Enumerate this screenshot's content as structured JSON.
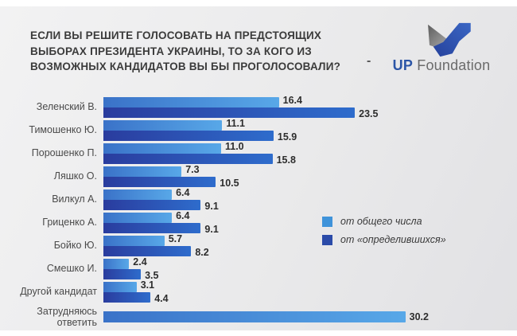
{
  "title": "ЕСЛИ ВЫ РЕШИТЕ ГОЛОСОВАТЬ НА ПРЕДСТОЯЩИХ ВЫБОРАХ ПРЕЗИДЕНТА УКРАИНЫ, ТО ЗА КОГО ИЗ ВОЗМОЖНЫХ КАНДИДАТОВ ВЫ БЫ ПРОГОЛОСОВАЛИ?",
  "brand": {
    "dash": "-",
    "logo_up": "UP",
    "logo_foundation": "Foundation",
    "logo_blue": "#2b55a7",
    "logo_gray": "#6b6b6b"
  },
  "chart_data": {
    "type": "bar",
    "orientation": "horizontal",
    "title": "ЕСЛИ ВЫ РЕШИТЕ ГОЛОСОВАТЬ НА ПРЕДСТОЯЩИХ ВЫБОРАХ ПРЕЗИДЕНТА УКРАИНЫ, ТО ЗА КОГО ИЗ ВОЗМОЖНЫХ КАНДИДАТОВ ВЫ БЫ ПРОГОЛОСОВАЛИ?",
    "categories": [
      "Зеленский В.",
      "Тимошенко Ю.",
      "Порошенко П.",
      "Ляшко О.",
      "Вилкул А.",
      "Гриценко А.",
      "Бойко Ю.",
      "Смешко И.",
      "Другой кандидат",
      "Затрудняюсь ответить"
    ],
    "series": [
      {
        "name": "от общего числа",
        "values": [
          16.4,
          11.1,
          11.0,
          7.3,
          6.4,
          6.4,
          5.7,
          2.4,
          3.1,
          30.2
        ],
        "display": [
          "16.4",
          "11.1",
          "11.0",
          "7.3",
          "6.4",
          "6.4",
          "5.7",
          "2.4",
          "3.1",
          "30.2"
        ],
        "color_start": "#3a72c8",
        "color_end": "#58a8e8",
        "legend_color": "#3f93da"
      },
      {
        "name": "от «определившихся»",
        "values": [
          23.5,
          15.9,
          15.8,
          10.5,
          9.1,
          9.1,
          8.2,
          3.5,
          4.4,
          null
        ],
        "display": [
          "23.5",
          "15.9",
          "15.8",
          "10.5",
          "9.1",
          "9.1",
          "8.2",
          "3.5",
          "4.4",
          null
        ],
        "color_start": "#2a3c9e",
        "color_end": "#2e6ccc",
        "legend_color": "#2b4ba9"
      }
    ],
    "xlim": [
      0,
      30.4
    ],
    "grid": false,
    "value_labels": true,
    "legend_position": "right-middle"
  }
}
